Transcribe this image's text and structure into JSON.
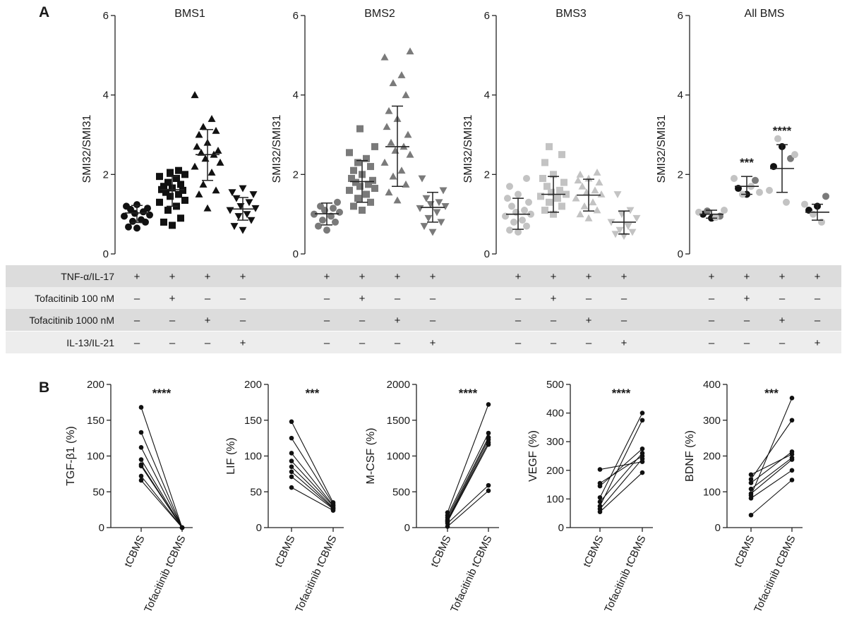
{
  "panels": {
    "a": "A",
    "b": "B"
  },
  "conditions": {
    "rows": [
      "TNF-α/IL-17",
      "Tofacitinib 100 nM",
      "Tofacitinib 1000 nM",
      "IL-13/IL-21"
    ],
    "matrix": [
      [
        "+",
        "+",
        "+",
        "+"
      ],
      [
        "–",
        "+",
        "–",
        "–"
      ],
      [
        "–",
        "–",
        "+",
        "–"
      ],
      [
        "–",
        "–",
        "–",
        "+"
      ]
    ]
  },
  "chart_data": [
    {
      "type": "scatter",
      "title": "BMS1",
      "ylabel": "SMI32/SMI31",
      "ylim": [
        0,
        6
      ],
      "yticks": [
        0,
        2,
        4,
        6
      ],
      "color": "#111111",
      "groups": [
        {
          "marker": "circle",
          "mean": 1.03,
          "sd_low": 0.79,
          "sd_high": 1.22,
          "points": [
            0.65,
            0.68,
            0.8,
            0.82,
            0.86,
            0.95,
            0.98,
            1.02,
            1.06,
            1.12,
            1.15,
            1.2,
            1.24
          ]
        },
        {
          "marker": "square",
          "mean": 1.62,
          "sd_low": 1.2,
          "sd_high": 1.95,
          "points": [
            0.72,
            0.8,
            0.9,
            1.1,
            1.2,
            1.3,
            1.35,
            1.45,
            1.5,
            1.55,
            1.6,
            1.62,
            1.66,
            1.7,
            1.75,
            1.8,
            1.9,
            1.95,
            2.0,
            2.05,
            2.1
          ]
        },
        {
          "marker": "triangle-up",
          "mean": 2.5,
          "sd_low": 1.85,
          "sd_high": 3.13,
          "points": [
            1.15,
            1.5,
            1.6,
            1.75,
            2.05,
            2.2,
            2.3,
            2.4,
            2.5,
            2.55,
            2.6,
            2.7,
            2.8,
            3.0,
            3.1,
            3.2,
            3.4,
            4.0
          ]
        },
        {
          "marker": "triangle-down",
          "mean": 1.13,
          "sd_low": 0.85,
          "sd_high": 1.42,
          "points": [
            0.6,
            0.7,
            0.85,
            0.95,
            1.0,
            1.1,
            1.15,
            1.2,
            1.3,
            1.4,
            1.5,
            1.55,
            1.65
          ]
        }
      ]
    },
    {
      "type": "scatter",
      "title": "BMS2",
      "ylabel": "SMI32/SMI31",
      "ylim": [
        0,
        6
      ],
      "yticks": [
        0,
        2,
        4,
        6
      ],
      "color": "#7a7a7a",
      "groups": [
        {
          "marker": "circle",
          "mean": 1.01,
          "sd_low": 0.73,
          "sd_high": 1.28,
          "points": [
            0.6,
            0.7,
            0.8,
            0.85,
            0.95,
            1.0,
            1.05,
            1.1,
            1.15,
            1.2,
            1.3
          ]
        },
        {
          "marker": "square",
          "mean": 1.82,
          "sd_low": 1.3,
          "sd_high": 2.35,
          "points": [
            1.1,
            1.2,
            1.3,
            1.4,
            1.5,
            1.6,
            1.65,
            1.7,
            1.75,
            1.8,
            1.85,
            1.9,
            2.0,
            2.1,
            2.2,
            2.3,
            2.4,
            2.55,
            2.7,
            3.15
          ]
        },
        {
          "marker": "triangle-up",
          "mean": 2.7,
          "sd_low": 1.7,
          "sd_high": 3.72,
          "points": [
            1.35,
            1.55,
            1.75,
            1.95,
            2.1,
            2.3,
            2.5,
            2.6,
            2.7,
            2.8,
            3.0,
            3.2,
            3.4,
            3.6,
            4.0,
            4.3,
            4.5,
            4.95,
            5.1
          ]
        },
        {
          "marker": "triangle-down",
          "mean": 1.17,
          "sd_low": 0.8,
          "sd_high": 1.55,
          "points": [
            0.55,
            0.7,
            0.8,
            0.9,
            1.05,
            1.15,
            1.2,
            1.25,
            1.3,
            1.4,
            1.6,
            1.9
          ]
        }
      ]
    },
    {
      "type": "scatter",
      "title": "BMS3",
      "ylabel": "SMI32/SMI31",
      "ylim": [
        0,
        6
      ],
      "yticks": [
        0,
        2,
        4,
        6
      ],
      "color": "#c3c3c3",
      "groups": [
        {
          "marker": "circle",
          "mean": 1.0,
          "sd_low": 0.62,
          "sd_high": 1.4,
          "points": [
            0.55,
            0.6,
            0.7,
            0.8,
            0.85,
            0.95,
            1.0,
            1.05,
            1.1,
            1.2,
            1.3,
            1.4,
            1.5,
            1.7,
            1.9
          ]
        },
        {
          "marker": "square",
          "mean": 1.5,
          "sd_low": 1.05,
          "sd_high": 1.95,
          "points": [
            1.0,
            1.1,
            1.2,
            1.3,
            1.4,
            1.45,
            1.5,
            1.55,
            1.6,
            1.7,
            1.8,
            1.9,
            2.0,
            2.3,
            2.5,
            2.7
          ]
        },
        {
          "marker": "triangle-up",
          "mean": 1.48,
          "sd_low": 1.08,
          "sd_high": 1.88,
          "points": [
            0.9,
            1.0,
            1.1,
            1.2,
            1.3,
            1.4,
            1.5,
            1.55,
            1.6,
            1.7,
            1.8,
            1.85,
            1.9,
            2.0,
            2.05
          ]
        },
        {
          "marker": "triangle-down",
          "mean": 0.8,
          "sd_low": 0.5,
          "sd_high": 1.08,
          "points": [
            0.45,
            0.5,
            0.55,
            0.6,
            0.7,
            0.8,
            0.9,
            1.0,
            1.1,
            1.5
          ]
        }
      ]
    },
    {
      "type": "scatter",
      "title": "All BMS",
      "ylabel": "SMI32/SMI31",
      "ylim": [
        0,
        6
      ],
      "yticks": [
        0,
        2,
        4,
        6
      ],
      "groups": [
        {
          "marker": "circle",
          "mean": 1.0,
          "sd_low": 0.9,
          "sd_high": 1.1,
          "stars": "",
          "points": [
            {
              "v": 0.9,
              "c": "#111111"
            },
            {
              "v": 1.0,
              "c": "#111111"
            },
            {
              "v": 0.95,
              "c": "#7a7a7a"
            },
            {
              "v": 1.08,
              "c": "#7a7a7a"
            },
            {
              "v": 0.92,
              "c": "#c3c3c3"
            },
            {
              "v": 1.05,
              "c": "#c3c3c3"
            },
            {
              "v": 1.1,
              "c": "#c3c3c3"
            }
          ]
        },
        {
          "marker": "circle",
          "mean": 1.7,
          "sd_low": 1.5,
          "sd_high": 1.95,
          "stars": "***",
          "points": [
            {
              "v": 1.5,
              "c": "#111111"
            },
            {
              "v": 1.65,
              "c": "#111111"
            },
            {
              "v": 1.85,
              "c": "#7a7a7a"
            },
            {
              "v": 1.5,
              "c": "#c3c3c3"
            },
            {
              "v": 1.7,
              "c": "#c3c3c3"
            },
            {
              "v": 1.9,
              "c": "#c3c3c3"
            },
            {
              "v": 1.55,
              "c": "#c3c3c3"
            }
          ]
        },
        {
          "marker": "circle",
          "mean": 2.15,
          "sd_low": 1.55,
          "sd_high": 2.75,
          "stars": "****",
          "points": [
            {
              "v": 2.7,
              "c": "#111111"
            },
            {
              "v": 2.2,
              "c": "#111111"
            },
            {
              "v": 2.4,
              "c": "#7a7a7a"
            },
            {
              "v": 2.9,
              "c": "#c3c3c3"
            },
            {
              "v": 1.3,
              "c": "#c3c3c3"
            },
            {
              "v": 1.6,
              "c": "#c3c3c3"
            },
            {
              "v": 2.5,
              "c": "#c3c3c3"
            }
          ]
        },
        {
          "marker": "circle",
          "mean": 1.05,
          "sd_low": 0.85,
          "sd_high": 1.25,
          "stars": "",
          "points": [
            {
              "v": 1.2,
              "c": "#111111"
            },
            {
              "v": 1.1,
              "c": "#111111"
            },
            {
              "v": 1.45,
              "c": "#7a7a7a"
            },
            {
              "v": 1.0,
              "c": "#c3c3c3"
            },
            {
              "v": 0.8,
              "c": "#c3c3c3"
            },
            {
              "v": 1.25,
              "c": "#c3c3c3"
            }
          ]
        }
      ]
    },
    {
      "type": "line",
      "ylabel": "TGF-β1 (%)",
      "ylim": [
        0,
        200
      ],
      "yticks": [
        0,
        50,
        100,
        150,
        200
      ],
      "categories": [
        "tCBMS",
        "Tofacitinib tCBMS"
      ],
      "stars": "****",
      "pairs": [
        [
          168,
          0
        ],
        [
          133,
          0
        ],
        [
          112,
          0
        ],
        [
          95,
          0
        ],
        [
          88,
          0
        ],
        [
          86,
          0
        ],
        [
          72,
          0
        ],
        [
          66,
          0
        ]
      ]
    },
    {
      "type": "line",
      "ylabel": "LIF (%)",
      "ylim": [
        0,
        200
      ],
      "yticks": [
        0,
        50,
        100,
        150,
        200
      ],
      "categories": [
        "tCBMS",
        "Tofacitinib tCBMS"
      ],
      "stars": "***",
      "pairs": [
        [
          148,
          35
        ],
        [
          125,
          33
        ],
        [
          104,
          31
        ],
        [
          93,
          30
        ],
        [
          85,
          28
        ],
        [
          78,
          27
        ],
        [
          71,
          26
        ],
        [
          56,
          24
        ]
      ]
    },
    {
      "type": "line",
      "ylabel": "M-CSF (%)",
      "ylim": [
        0,
        2000
      ],
      "yticks": [
        0,
        500,
        1000,
        1500,
        2000
      ],
      "categories": [
        "tCBMS",
        "Tofacitinib tCBMS"
      ],
      "stars": "****",
      "pairs": [
        [
          210,
          1720
        ],
        [
          170,
          1320
        ],
        [
          140,
          1260
        ],
        [
          110,
          1230
        ],
        [
          95,
          1190
        ],
        [
          80,
          1160
        ],
        [
          60,
          590
        ],
        [
          15,
          515
        ]
      ]
    },
    {
      "type": "line",
      "ylabel": "VEGF (%)",
      "ylim": [
        0,
        500
      ],
      "yticks": [
        0,
        100,
        200,
        300,
        400,
        500
      ],
      "categories": [
        "tCBMS",
        "Tofacitinib tCBMS"
      ],
      "stars": "****",
      "pairs": [
        [
          203,
          230
        ],
        [
          155,
          250
        ],
        [
          145,
          275
        ],
        [
          105,
          400
        ],
        [
          90,
          260
        ],
        [
          75,
          375
        ],
        [
          65,
          240
        ],
        [
          55,
          192
        ]
      ]
    },
    {
      "type": "line",
      "ylabel": "BDNF (%)",
      "ylim": [
        0,
        400
      ],
      "yticks": [
        0,
        100,
        200,
        300,
        400
      ],
      "categories": [
        "tCBMS",
        "Tofacitinib tCBMS"
      ],
      "stars": "***",
      "pairs": [
        [
          148,
          205
        ],
        [
          135,
          300
        ],
        [
          125,
          212
        ],
        [
          108,
          195
        ],
        [
          95,
          190
        ],
        [
          90,
          362
        ],
        [
          82,
          160
        ],
        [
          35,
          133
        ]
      ]
    }
  ]
}
